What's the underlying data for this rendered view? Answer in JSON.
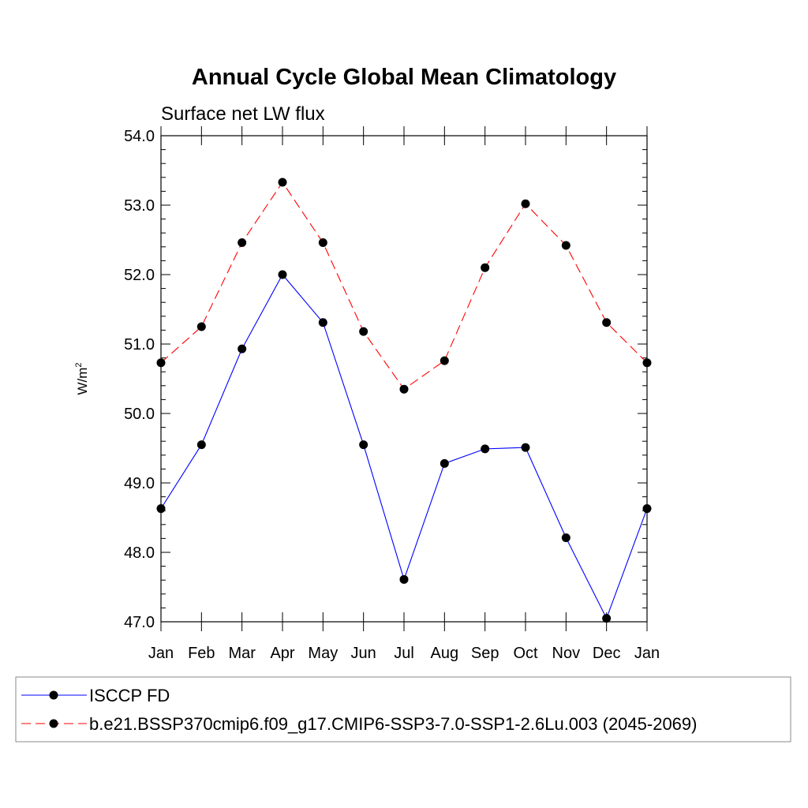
{
  "chart_data": {
    "type": "line",
    "title": "Annual Cycle Global Mean Climatology",
    "subtitle": "Surface net LW flux",
    "xlabel": "",
    "ylabel": "W/m",
    "ylabel_superscript": "2",
    "categories": [
      "Jan",
      "Feb",
      "Mar",
      "Apr",
      "May",
      "Jun",
      "Jul",
      "Aug",
      "Sep",
      "Oct",
      "Nov",
      "Dec",
      "Jan"
    ],
    "ylim": [
      47.0,
      54.0
    ],
    "yticks": [
      "47.0",
      "48.0",
      "49.0",
      "50.0",
      "51.0",
      "52.0",
      "53.0",
      "54.0"
    ],
    "grid": false,
    "legend_position": "bottom",
    "series": [
      {
        "name": "ISCCP FD",
        "color": "#0000ff",
        "dash": "solid",
        "values": [
          48.63,
          49.55,
          50.93,
          52.0,
          51.31,
          49.55,
          47.61,
          49.28,
          49.49,
          49.51,
          48.21,
          47.05,
          48.63
        ]
      },
      {
        "name": "b.e21.BSSP370cmip6.f09_g17.CMIP6-SSP3-7.0-SSP1-2.6Lu.003 (2045-2069)",
        "color": "#ff0000",
        "dash": "dashed",
        "values": [
          50.73,
          51.25,
          52.46,
          53.33,
          52.46,
          51.18,
          50.35,
          50.76,
          52.1,
          53.02,
          52.42,
          51.31,
          50.73
        ]
      }
    ]
  }
}
